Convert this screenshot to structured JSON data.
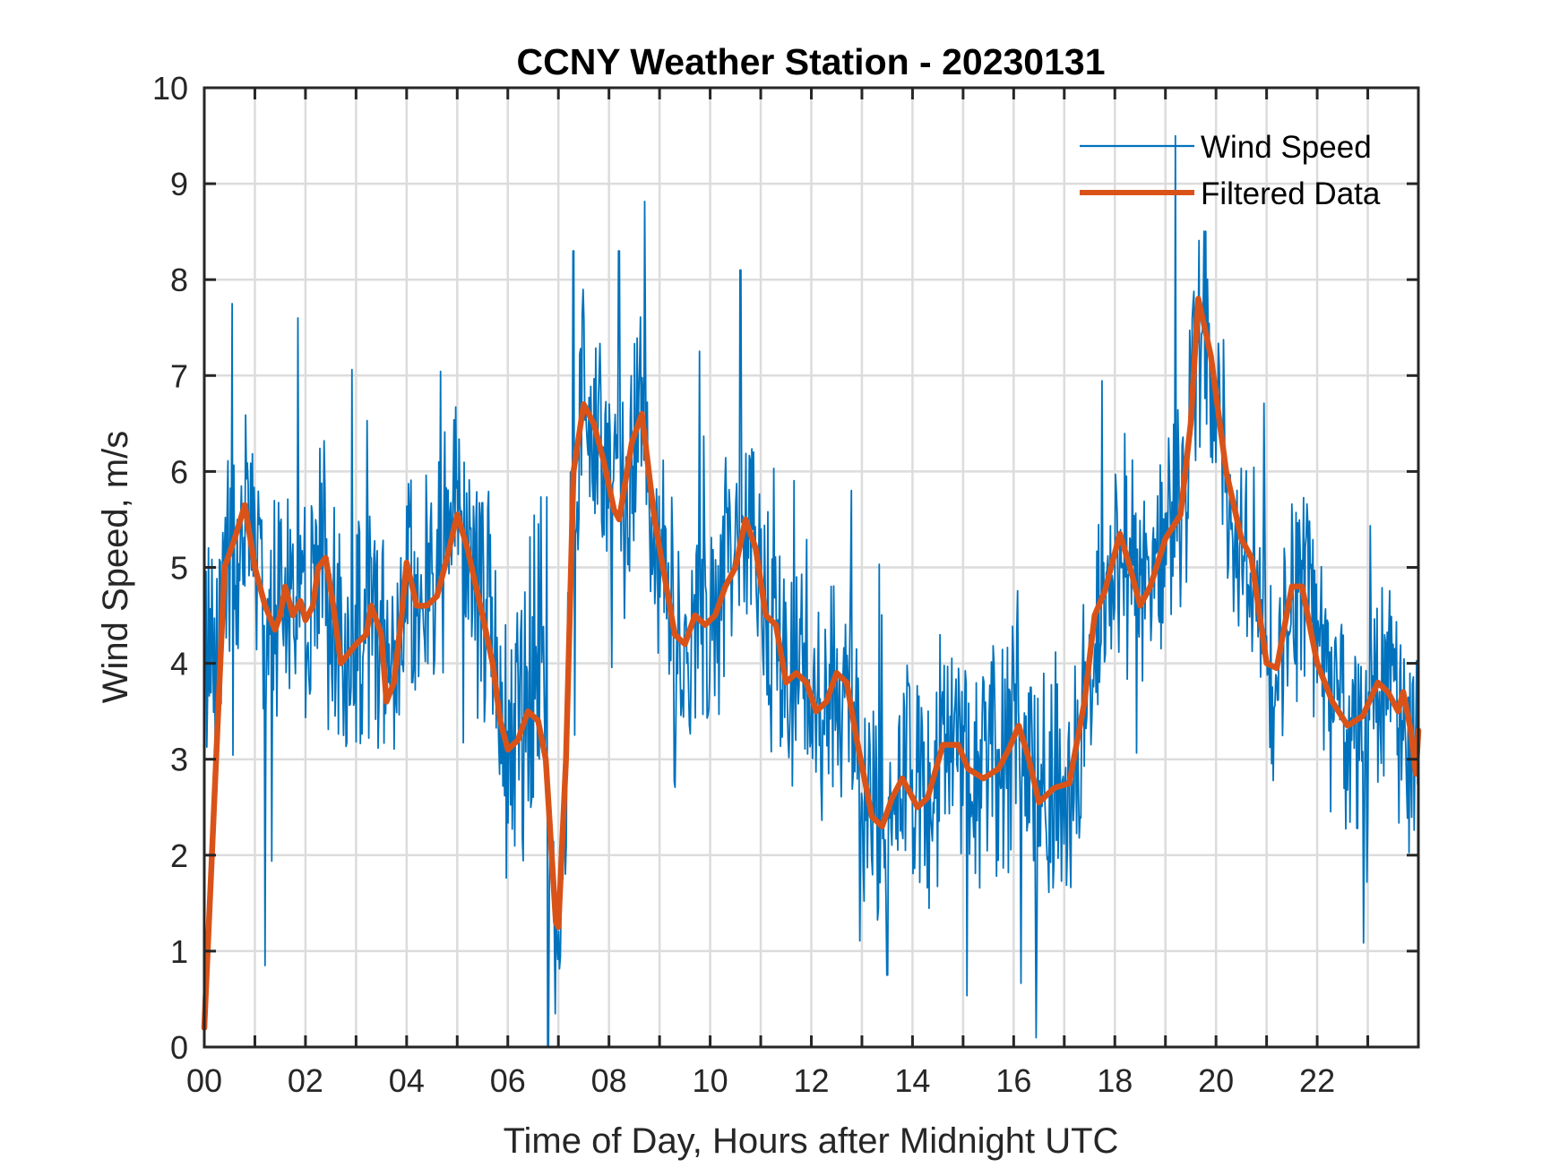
{
  "chart_data": {
    "type": "line",
    "title": "CCNY Weather Station - 20230131",
    "xlabel": "Time of Day, Hours after Midnight UTC",
    "ylabel": "Wind Speed, m/s",
    "xlim": [
      0,
      24
    ],
    "ylim": [
      0,
      10
    ],
    "grid": true,
    "x_ticks": [
      0,
      2,
      4,
      6,
      8,
      10,
      12,
      14,
      16,
      18,
      20,
      22
    ],
    "x_tick_labels": [
      "00",
      "02",
      "04",
      "06",
      "08",
      "10",
      "12",
      "14",
      "16",
      "18",
      "20",
      "22"
    ],
    "x_minor_ticks_every_hours": 1,
    "y_ticks": [
      0,
      1,
      2,
      3,
      4,
      5,
      6,
      7,
      8,
      9,
      10
    ],
    "y_tick_labels": [
      "0",
      "1",
      "2",
      "3",
      "4",
      "5",
      "6",
      "7",
      "8",
      "9",
      "10"
    ],
    "legend": {
      "placement": "top-right",
      "entries": [
        "Wind Speed",
        "Filtered Data"
      ]
    },
    "series": [
      {
        "name": "Wind Speed",
        "color": "#0072BD",
        "style": "thin",
        "description": "High-frequency raw samples (approx. 1 per minute) fluctuating around the filtered trend",
        "observed_min": 0.0,
        "observed_max": 9.5,
        "notable_peaks": [
          {
            "x": 0.55,
            "y": 7.75
          },
          {
            "x": 1.85,
            "y": 7.6
          },
          {
            "x": 7.3,
            "y": 8.3
          },
          {
            "x": 8.2,
            "y": 8.3
          },
          {
            "x": 10.6,
            "y": 8.1
          },
          {
            "x": 19.2,
            "y": 9.5
          }
        ],
        "notable_dips": [
          {
            "x": 1.2,
            "y": 0.85
          },
          {
            "x": 6.8,
            "y": 0.0
          },
          {
            "x": 13.5,
            "y": 0.75
          }
        ],
        "noise_amplitude_ms": 1.1
      },
      {
        "name": "Filtered Data",
        "color": "#D95319",
        "style": "thick",
        "x": [
          0,
          0.15,
          0.4,
          0.6,
          0.8,
          1.0,
          1.2,
          1.4,
          1.5,
          1.6,
          1.75,
          1.9,
          2.0,
          2.15,
          2.25,
          2.4,
          2.55,
          2.7,
          2.85,
          3.0,
          3.2,
          3.3,
          3.5,
          3.6,
          3.75,
          3.9,
          4.0,
          4.2,
          4.4,
          4.6,
          4.8,
          5.0,
          5.2,
          5.5,
          5.7,
          5.85,
          6.0,
          6.2,
          6.4,
          6.6,
          6.75,
          6.95,
          7.0,
          7.15,
          7.3,
          7.5,
          7.7,
          7.9,
          8.1,
          8.2,
          8.45,
          8.65,
          8.9,
          9.1,
          9.3,
          9.5,
          9.7,
          9.9,
          10.1,
          10.3,
          10.5,
          10.7,
          10.9,
          11.1,
          11.3,
          11.5,
          11.7,
          11.9,
          12.1,
          12.3,
          12.5,
          12.7,
          12.9,
          13.2,
          13.4,
          13.6,
          13.8,
          14.1,
          14.3,
          14.6,
          14.9,
          15.1,
          15.4,
          15.7,
          15.9,
          16.1,
          16.3,
          16.5,
          16.8,
          17.1,
          17.4,
          17.6,
          17.8,
          18.1,
          18.3,
          18.5,
          18.7,
          19.0,
          19.3,
          19.5,
          19.65,
          19.9,
          20.2,
          20.5,
          20.7,
          21.0,
          21.2,
          21.5,
          21.7,
          22.0,
          22.3,
          22.6,
          22.9,
          23.2,
          23.4,
          23.6,
          23.7,
          23.85,
          23.95,
          24.0
        ],
        "y": [
          0.2,
          2.0,
          5.0,
          5.3,
          5.65,
          5.0,
          4.6,
          4.35,
          4.5,
          4.8,
          4.5,
          4.65,
          4.45,
          4.6,
          5.0,
          5.1,
          4.6,
          4.0,
          4.1,
          4.2,
          4.3,
          4.6,
          4.3,
          3.6,
          3.8,
          4.5,
          5.05,
          4.6,
          4.6,
          4.7,
          5.1,
          5.55,
          5.2,
          4.5,
          4.0,
          3.4,
          3.1,
          3.2,
          3.5,
          3.4,
          3.0,
          1.3,
          1.25,
          3.0,
          6.0,
          6.7,
          6.5,
          6.1,
          5.6,
          5.5,
          6.3,
          6.6,
          5.5,
          4.9,
          4.3,
          4.2,
          4.5,
          4.4,
          4.5,
          4.8,
          5.0,
          5.5,
          5.2,
          4.5,
          4.4,
          3.8,
          3.9,
          3.8,
          3.5,
          3.6,
          3.9,
          3.8,
          3.2,
          2.4,
          2.3,
          2.6,
          2.8,
          2.5,
          2.6,
          3.15,
          3.15,
          2.9,
          2.8,
          2.9,
          3.1,
          3.35,
          3.0,
          2.55,
          2.7,
          2.75,
          3.6,
          4.5,
          4.75,
          5.35,
          5.0,
          4.6,
          4.8,
          5.3,
          5.55,
          6.5,
          7.8,
          7.2,
          6.0,
          5.3,
          5.1,
          4.0,
          3.95,
          4.8,
          4.8,
          4.0,
          3.6,
          3.35,
          3.45,
          3.8,
          3.7,
          3.5,
          3.7,
          3.3,
          2.85,
          3.3
        ]
      }
    ]
  }
}
